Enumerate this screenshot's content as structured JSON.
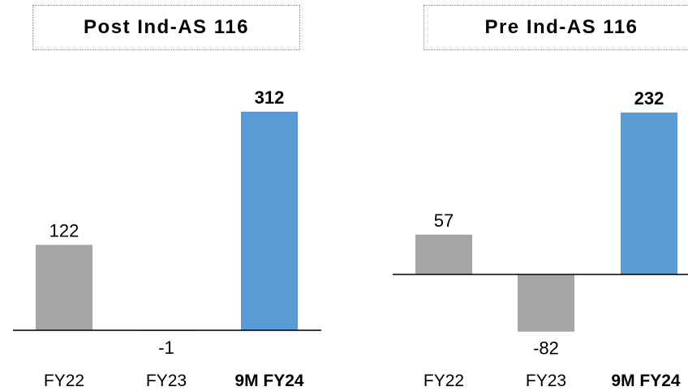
{
  "chart_data": [
    {
      "type": "bar",
      "title": "Post Ind-AS 116",
      "categories": [
        "FY22",
        "FY23",
        "9M FY24"
      ],
      "values": [
        122,
        -1,
        312
      ],
      "value_labels": [
        "122",
        "-1",
        "312"
      ],
      "highlight": [
        false,
        false,
        true
      ],
      "colors": {
        "base": "#a6a6a6",
        "highlight": "#5b9bd5"
      },
      "grid": false,
      "legend": "none"
    },
    {
      "type": "bar",
      "title": "Pre Ind-AS 116",
      "categories": [
        "FY22",
        "FY23",
        "9M FY24"
      ],
      "values": [
        57,
        -82,
        232
      ],
      "value_labels": [
        "57",
        "-82",
        "232"
      ],
      "highlight": [
        false,
        false,
        true
      ],
      "colors": {
        "base": "#a6a6a6",
        "highlight": "#5b9bd5"
      },
      "grid": false,
      "legend": "none"
    }
  ]
}
